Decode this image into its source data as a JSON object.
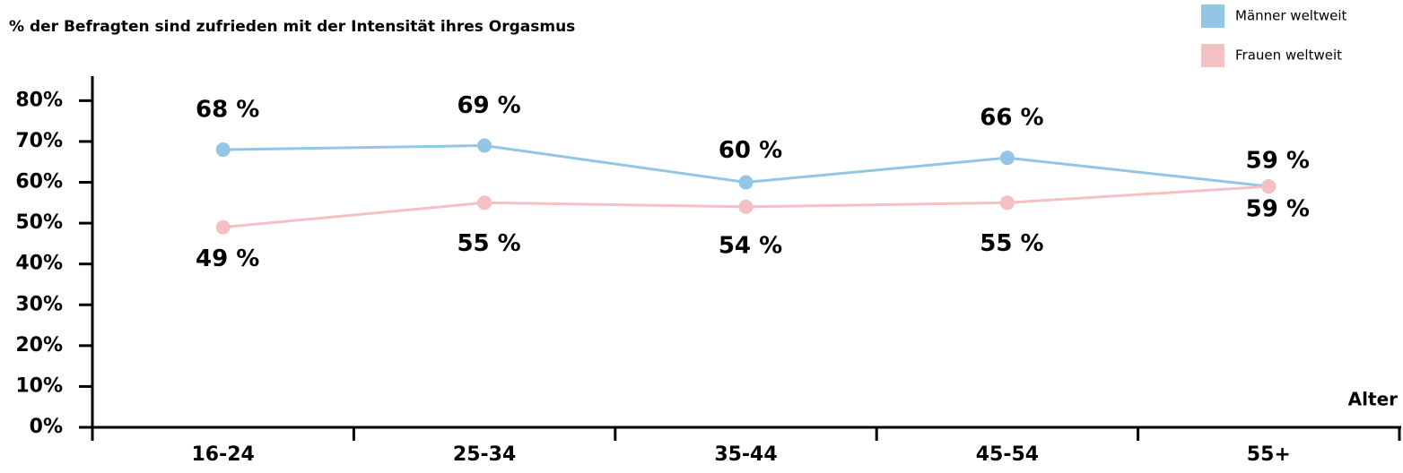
{
  "chart_data": {
    "type": "line",
    "title": "% der Befragten sind zufrieden mit der Intensität ihres Orgasmus",
    "x_label": "Alter",
    "categories": [
      "16-24",
      "25-34",
      "35-44",
      "45-54",
      "55+"
    ],
    "series": [
      {
        "name": "Männer weltweit",
        "color": "#93c6e6",
        "values": [
          68,
          69,
          60,
          66,
          59
        ],
        "value_labels": [
          "68 %",
          "69 %",
          "60 %",
          "66 %",
          "59 %"
        ]
      },
      {
        "name": "Frauen weltweit",
        "color": "#f5c0c3",
        "values": [
          49,
          55,
          54,
          55,
          59
        ],
        "value_labels": [
          "49 %",
          "55 %",
          "54 %",
          "55 %",
          "59 %"
        ]
      }
    ],
    "ylim": [
      0,
      86
    ],
    "yticks": [
      {
        "value": 0,
        "label": "0%"
      },
      {
        "value": 10,
        "label": "10%"
      },
      {
        "value": 20,
        "label": "20%"
      },
      {
        "value": 30,
        "label": "30%"
      },
      {
        "value": 40,
        "label": "40%"
      },
      {
        "value": 50,
        "label": "50%"
      },
      {
        "value": 60,
        "label": "60%"
      },
      {
        "value": 70,
        "label": "70%"
      },
      {
        "value": 80,
        "label": "80%"
      }
    ],
    "legend": "top-right"
  }
}
